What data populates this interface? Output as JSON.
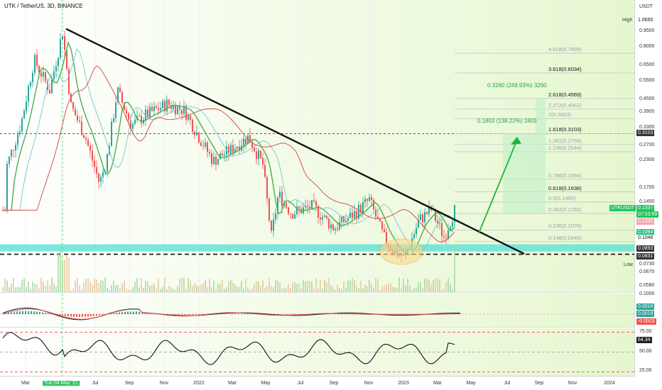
{
  "header": {
    "title": "UTK / TetherUS, 3D, BINANCE"
  },
  "price_axis": {
    "unit": "USDT",
    "labels": [
      "1.0650",
      "0.9500",
      "0.8000",
      "0.6500",
      "0.5500",
      "0.4500",
      "0.3900",
      "0.3300",
      "0.2700",
      "0.2300",
      "0.1700",
      "0.1450",
      "0.1337",
      "07:53:59",
      "0.1200",
      "0.1064",
      "0.1046",
      "0.0893",
      "0.0831",
      "0.0730",
      "0.0670",
      "0.0580",
      "0.1000"
    ],
    "high_label": "High",
    "low_label": "Low",
    "symbol_tag": "UTKUSDT"
  },
  "tags": {
    "price": "0.1337",
    "countdown": "07:53:59",
    "level_a": "0.3103",
    "level_b": "0.1200",
    "level_c": "0.1064",
    "level_d": "0.1046",
    "level_e": "0.0893",
    "level_f": "0.0831",
    "high": "1.0650",
    "low": "Low"
  },
  "time_axis": {
    "labels": [
      "Mar",
      "Tue 04 May '21",
      "Jul",
      "Sep",
      "Nov",
      "2022",
      "Mar",
      "May",
      "Jul",
      "Sep",
      "Nov",
      "2023",
      "Mar",
      "May",
      "Jul",
      "Sep",
      "Nov",
      "2024"
    ]
  },
  "fibs": [
    {
      "label": "4.618(0.7499)",
      "bold": false
    },
    {
      "label": "3.618(0.6034)",
      "bold": true
    },
    {
      "label": "2.618(0.4569)",
      "bold": true
    },
    {
      "label": "2.272(0.4062)",
      "bold": false
    },
    {
      "label": "2(0.3663)",
      "bold": false
    },
    {
      "label": "1.618(0.3103)",
      "bold": true
    },
    {
      "label": "1.382(0.2758)",
      "bold": false
    },
    {
      "label": "1.236(0.2544)",
      "bold": false
    },
    {
      "label": "0.786(0.1884)",
      "bold": false
    },
    {
      "label": "0.618(0.1638)",
      "bold": true
    },
    {
      "label": "0.5(0.1465)",
      "bold": false
    },
    {
      "label": "0.382(0.1292)",
      "bold": false
    },
    {
      "label": "0.236(0.1078)",
      "bold": false
    },
    {
      "label": "0.148(0.0949)",
      "bold": false
    }
  ],
  "measure": {
    "upper": "0.3260 (249.93%) 3260",
    "lower": "0.1803 (138.22%) 1803"
  },
  "macd": {
    "values": [
      "0.0016",
      "0.0019",
      "-0.0003"
    ]
  },
  "rsi": {
    "value": "64.34",
    "labels": [
      "75.00",
      "50.00",
      "25.00"
    ]
  },
  "colors": {
    "bull": "#26a69a",
    "bear": "#ef5350",
    "green": "#22c55e",
    "trend": "#111111",
    "support": "#5ee0d8",
    "fib": "#bfc5cc"
  },
  "chart_data": {
    "type": "candlestick",
    "title": "UTK / TetherUS, 3D, BINANCE",
    "x": [
      "Mar",
      "May '21",
      "Jul",
      "Sep",
      "Nov",
      "2022",
      "Mar",
      "May",
      "Jul",
      "Sep",
      "Nov",
      "2023",
      "Mar",
      "Mar '23 end"
    ],
    "close_approx": [
      0.28,
      0.6,
      0.4,
      0.3,
      0.36,
      0.33,
      0.28,
      0.12,
      0.125,
      0.12,
      0.105,
      0.085,
      0.13,
      0.1337
    ],
    "ylim": [
      0.058,
      1.065
    ],
    "scale": "log"
  }
}
